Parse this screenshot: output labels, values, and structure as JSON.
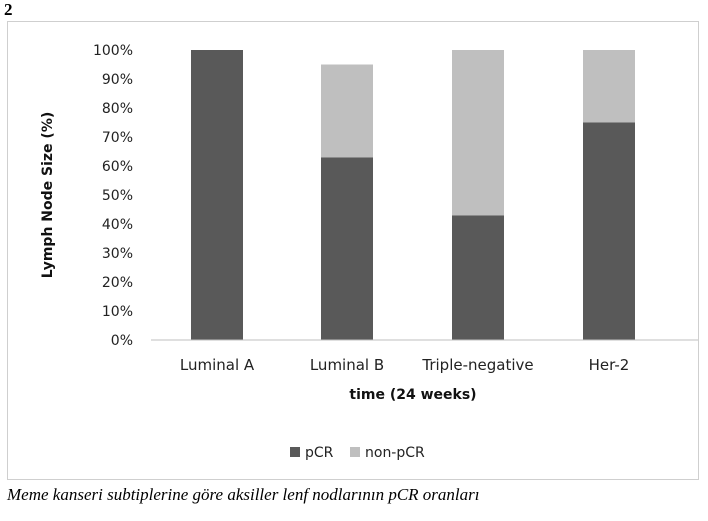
{
  "figure_number": "2",
  "caption": "Meme kanseri subtiplerine göre aksiller lenf nodlarının pCR oranları",
  "colors": {
    "pcr": "#595959",
    "non_pcr": "#bfbfbf",
    "axis": "#bfbfbf"
  },
  "chart_data": {
    "type": "bar",
    "stacked": true,
    "title": "",
    "xlabel": "time (24 weeks)",
    "ylabel": "Lymph Node Size (%)",
    "ylim": [
      0,
      100
    ],
    "yticks": [
      "0%",
      "10%",
      "20%",
      "30%",
      "40%",
      "50%",
      "60%",
      "70%",
      "80%",
      "90%",
      "100%"
    ],
    "categories": [
      "Luminal A",
      "Luminal B",
      "Triple-negative",
      "Her-2"
    ],
    "series": [
      {
        "name": "pCR",
        "values": [
          100,
          63,
          43,
          75
        ]
      },
      {
        "name": "non-pCR",
        "values": [
          0,
          32,
          57,
          25
        ]
      }
    ],
    "legend_position": "bottom",
    "grid": false
  }
}
